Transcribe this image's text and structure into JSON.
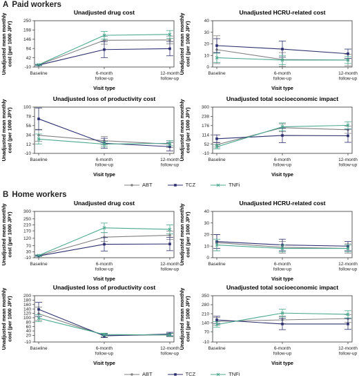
{
  "sections": [
    {
      "letter": "A",
      "title": "Paid workers",
      "legend": [
        {
          "name": "ABT",
          "color": "#808080",
          "marker": "circle"
        },
        {
          "name": "TCZ",
          "color": "#2b2e6e",
          "marker": "square"
        },
        {
          "name": "TNFi",
          "color": "#4aa88e",
          "marker": "x"
        }
      ]
    },
    {
      "letter": "B",
      "title": "Home workers",
      "legend": [
        {
          "name": "ABT",
          "color": "#808080",
          "marker": "circle"
        },
        {
          "name": "TCZ",
          "color": "#2b2e6e",
          "marker": "square"
        },
        {
          "name": "TNFi",
          "color": "#4aa88e",
          "marker": "x"
        }
      ]
    }
  ],
  "chart_data": [
    {
      "type": "line",
      "title": "Unadjusted drug cost",
      "ylabel": "Unadjusted mean monthly cost (per 1000 JPY)",
      "xlabel": "Visit type",
      "categories": [
        "Baseline",
        "6-month follow-up",
        "12-month follow-up"
      ],
      "yticks": [
        -10,
        42,
        94,
        146,
        198,
        250
      ],
      "ylim": [
        -10,
        250
      ],
      "series": [
        {
          "name": "ABT",
          "values": [
            2,
            140,
            142
          ],
          "err": [
            3,
            22,
            22
          ]
        },
        {
          "name": "TCZ",
          "values": [
            1,
            88,
            93
          ],
          "err": [
            3,
            45,
            40
          ]
        },
        {
          "name": "TNFi",
          "values": [
            3,
            168,
            173
          ],
          "err": [
            3,
            22,
            22
          ]
        }
      ]
    },
    {
      "type": "line",
      "title": "Unadjusted HCRU-related cost",
      "ylabel": "Unadjusted mean monthly cost (per 1000 JPY)",
      "xlabel": "Visit type",
      "categories": [
        "Baseline",
        "6-month follow-up",
        "12-month follow-up"
      ],
      "yticks": [
        0,
        10,
        20,
        30,
        40
      ],
      "ylim": [
        0,
        40
      ],
      "series": [
        {
          "name": "ABT",
          "values": [
            15,
            6.5,
            6
          ],
          "err": [
            12,
            6,
            5
          ]
        },
        {
          "name": "TCZ",
          "values": [
            18.5,
            15.5,
            11.5
          ],
          "err": [
            6,
            7,
            4
          ]
        },
        {
          "name": "TNFi",
          "values": [
            8,
            6,
            6
          ],
          "err": [
            4,
            4,
            3
          ]
        }
      ]
    },
    {
      "type": "line",
      "title": "Unadjusted loss of productivity cost",
      "ylabel": "Unadjusted mean monthly cost (per 1000 JPY)",
      "xlabel": "Visit type",
      "categories": [
        "Baseline",
        "6-month follow-up",
        "12-month follow-up"
      ],
      "yticks": [
        -10,
        12,
        34,
        56,
        78,
        100
      ],
      "ylim": [
        -10,
        100
      ],
      "series": [
        {
          "name": "ABT",
          "values": [
            33,
            20,
            12
          ],
          "err": [
            14,
            10,
            8
          ]
        },
        {
          "name": "TCZ",
          "values": [
            72,
            14,
            6
          ],
          "err": [
            26,
            12,
            10
          ]
        },
        {
          "name": "TNFi",
          "values": [
            24,
            12,
            14
          ],
          "err": [
            12,
            6,
            6
          ]
        }
      ]
    },
    {
      "type": "line",
      "title": "Unadjusted total socioeconomic impact",
      "ylabel": "Unadjusted mean monthly cost (per 1000 JPY)",
      "xlabel": "Visit type",
      "categories": [
        "Baseline",
        "6-month follow-up",
        "12-month follow-up"
      ],
      "yticks": [
        -10,
        52,
        114,
        176,
        238,
        300
      ],
      "ylim": [
        -10,
        300
      ],
      "series": [
        {
          "name": "ABT",
          "values": [
            48,
            162,
            148
          ],
          "err": [
            16,
            26,
            24
          ]
        },
        {
          "name": "TCZ",
          "values": [
            88,
            110,
            108
          ],
          "err": [
            26,
            48,
            44
          ]
        },
        {
          "name": "TNFi",
          "values": [
            34,
            168,
            178
          ],
          "err": [
            14,
            26,
            24
          ]
        }
      ]
    },
    {
      "type": "line",
      "title": "Unadjusted drug cost",
      "ylabel": "Unadjusted mean monthly cost (per 1000 JPY)",
      "xlabel": "Visit type",
      "categories": [
        "Baseline",
        "6-month follow-up",
        "12-month follow-up"
      ],
      "yticks": [
        -10,
        30,
        70,
        120,
        170,
        210,
        250,
        300
      ],
      "ylim": [
        -10,
        300
      ],
      "series": [
        {
          "name": "ABT",
          "values": [
            4,
            128,
            140
          ],
          "err": [
            4,
            30,
            28
          ]
        },
        {
          "name": "TCZ",
          "values": [
            2,
            80,
            82
          ],
          "err": [
            3,
            45,
            45
          ]
        },
        {
          "name": "TNFi",
          "values": [
            5,
            190,
            180
          ],
          "err": [
            4,
            32,
            30
          ]
        }
      ]
    },
    {
      "type": "line",
      "title": "Unadjusted HCRU-related cost",
      "ylabel": "Unadjusted mean monthly cost (per 1000 JPY)",
      "xlabel": "Visit type",
      "categories": [
        "Baseline",
        "6-month follow-up",
        "12-month follow-up"
      ],
      "yticks": [
        0,
        10,
        20,
        30,
        40
      ],
      "ylim": [
        0,
        40
      ],
      "series": [
        {
          "name": "ABT",
          "values": [
            13,
            9,
            8
          ],
          "err": [
            7,
            5,
            4
          ]
        },
        {
          "name": "TCZ",
          "values": [
            14,
            11,
            10
          ],
          "err": [
            6,
            5,
            4
          ]
        },
        {
          "name": "TNFi",
          "values": [
            11,
            8,
            8
          ],
          "err": [
            5,
            3,
            3
          ]
        }
      ]
    },
    {
      "type": "line",
      "title": "Unadjusted loss of productivity cost",
      "ylabel": "Unadjusted mean monthly cost (per 1000 JPY)",
      "xlabel": "Visit type",
      "categories": [
        "Baseline",
        "6-month follow-up",
        "12-month follow-up"
      ],
      "yticks": [
        -10,
        20,
        40,
        60,
        80,
        100,
        120,
        140,
        160,
        180,
        200
      ],
      "ylim": [
        -10,
        200
      ],
      "series": [
        {
          "name": "ABT",
          "values": [
            118,
            20,
            22
          ],
          "err": [
            30,
            8,
            8
          ]
        },
        {
          "name": "TCZ",
          "values": [
            138,
            18,
            26
          ],
          "err": [
            32,
            8,
            8
          ]
        },
        {
          "name": "TNFi",
          "values": [
            98,
            24,
            22
          ],
          "err": [
            16,
            6,
            6
          ]
        }
      ]
    },
    {
      "type": "line",
      "title": "Unadjusted total socioeconomic impact",
      "ylabel": "Unadjusted mean monthly cost (per 1000 JPY)",
      "xlabel": "Visit type",
      "categories": [
        "Baseline",
        "6-month follow-up",
        "12-month follow-up"
      ],
      "yticks": [
        -10,
        70,
        140,
        210,
        280,
        350
      ],
      "ylim": [
        -10,
        350
      ],
      "series": [
        {
          "name": "ABT",
          "values": [
            150,
            162,
            172
          ],
          "err": [
            30,
            30,
            30
          ]
        },
        {
          "name": "TCZ",
          "values": [
            162,
            130,
            130
          ],
          "err": [
            28,
            44,
            42
          ]
        },
        {
          "name": "TNFi",
          "values": [
            126,
            215,
            205
          ],
          "err": [
            22,
            30,
            28
          ]
        }
      ]
    }
  ]
}
